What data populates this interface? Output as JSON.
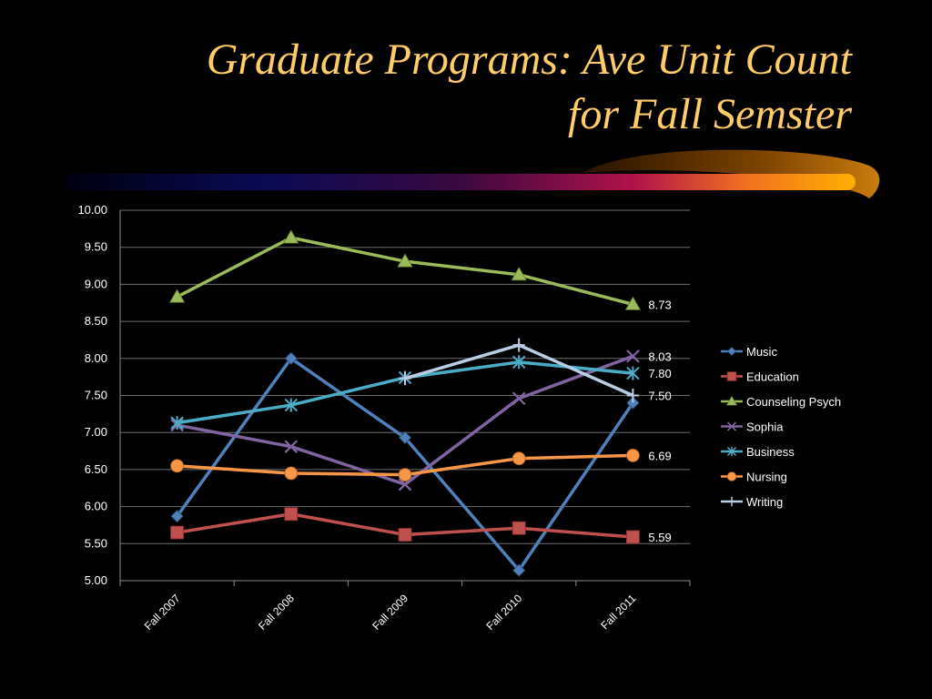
{
  "slide": {
    "title_line1": "Graduate Programs: Ave Unit Count",
    "title_line2": "for Fall Semster",
    "title_color": "#ffcc66",
    "background": "#000000"
  },
  "chart_data": {
    "type": "line",
    "title": "",
    "xlabel": "",
    "ylabel": "",
    "categories": [
      "Fall 2007",
      "Fall 2008",
      "Fall 2009",
      "Fall 2010",
      "Fall 2011"
    ],
    "ylim": [
      5.0,
      10.0
    ],
    "ytick_step": 0.5,
    "grid": true,
    "legend_position": "right",
    "series": [
      {
        "name": "Music",
        "values": [
          5.87,
          8.0,
          6.93,
          5.14,
          7.4
        ],
        "color": "#4f81bd",
        "marker": "diamond",
        "end_label": ""
      },
      {
        "name": "Education",
        "values": [
          5.65,
          5.9,
          5.62,
          5.71,
          5.59
        ],
        "color": "#c0504d",
        "marker": "square",
        "end_label": "5.59"
      },
      {
        "name": "Counseling Psych",
        "values": [
          8.83,
          9.63,
          9.31,
          9.13,
          8.73
        ],
        "color": "#9bbb59",
        "marker": "triangle",
        "end_label": "8.73"
      },
      {
        "name": "Sophia",
        "values": [
          7.1,
          6.81,
          6.3,
          7.46,
          8.03
        ],
        "color": "#8064a2",
        "marker": "x",
        "end_label": "8.03"
      },
      {
        "name": "Business",
        "values": [
          7.13,
          7.37,
          7.74,
          7.95,
          7.8
        ],
        "color": "#4bacc6",
        "marker": "star",
        "end_label": "7.80"
      },
      {
        "name": "Nursing",
        "values": [
          6.55,
          6.45,
          6.43,
          6.65,
          6.69
        ],
        "color": "#f79646",
        "marker": "circle",
        "end_label": "6.69"
      },
      {
        "name": "Writing",
        "values": [
          null,
          null,
          7.73,
          8.18,
          7.5
        ],
        "color": "#b9cde5",
        "marker": "plus",
        "end_label": "7.50"
      }
    ]
  }
}
